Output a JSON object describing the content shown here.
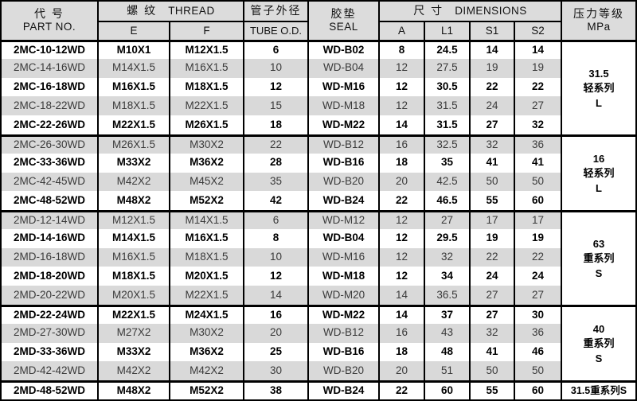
{
  "header": {
    "part_zh": "代  号",
    "part_en": "PART NO.",
    "thread_zh": "螺 纹",
    "thread_en": "THREAD",
    "col_e": "E",
    "col_f": "F",
    "tube_zh": "管子外径",
    "tube_en": "TUBE O.D.",
    "seal_zh": "胶垫",
    "seal_en": "SEAL",
    "dim_zh": "尺 寸",
    "dim_en": "DIMENSIONS",
    "col_a": "A",
    "col_l1": "L1",
    "col_s1": "S1",
    "col_s2": "S2",
    "pressure_zh": "压力等级",
    "pressure_en": "MPa"
  },
  "colors": {
    "stripe": "#d9d9d9",
    "header_bg": "#dcdcdc",
    "border": "#000000"
  },
  "groups": [
    {
      "pressure": [
        "31.5",
        "轻系列",
        "L"
      ],
      "rows": [
        {
          "part": "2MC-10-12WD",
          "e": "M10X1",
          "f": "M12X1.5",
          "tube": "6",
          "seal": "WD-B02",
          "a": "8",
          "l1": "24.5",
          "s1": "14",
          "s2": "14",
          "bold": true
        },
        {
          "part": "2MC-14-16WD",
          "e": "M14X1.5",
          "f": "M16X1.5",
          "tube": "10",
          "seal": "WD-B04",
          "a": "12",
          "l1": "27.5",
          "s1": "19",
          "s2": "19",
          "bold": false
        },
        {
          "part": "2MC-16-18WD",
          "e": "M16X1.5",
          "f": "M18X1.5",
          "tube": "12",
          "seal": "WD-M16",
          "a": "12",
          "l1": "30.5",
          "s1": "22",
          "s2": "22",
          "bold": true
        },
        {
          "part": "2MC-18-22WD",
          "e": "M18X1.5",
          "f": "M22X1.5",
          "tube": "15",
          "seal": "WD-M18",
          "a": "12",
          "l1": "31.5",
          "s1": "24",
          "s2": "27",
          "bold": false
        },
        {
          "part": "2MC-22-26WD",
          "e": "M22X1.5",
          "f": "M26X1.5",
          "tube": "18",
          "seal": "WD-M22",
          "a": "14",
          "l1": "31.5",
          "s1": "27",
          "s2": "32",
          "bold": true
        }
      ]
    },
    {
      "pressure": [
        "16",
        "轻系列",
        "L"
      ],
      "rows": [
        {
          "part": "2MC-26-30WD",
          "e": "M26X1.5",
          "f": "M30X2",
          "tube": "22",
          "seal": "WD-B12",
          "a": "16",
          "l1": "32.5",
          "s1": "32",
          "s2": "36",
          "bold": false
        },
        {
          "part": "2MC-33-36WD",
          "e": "M33X2",
          "f": "M36X2",
          "tube": "28",
          "seal": "WD-B16",
          "a": "18",
          "l1": "35",
          "s1": "41",
          "s2": "41",
          "bold": true
        },
        {
          "part": "2MC-42-45WD",
          "e": "M42X2",
          "f": "M45X2",
          "tube": "35",
          "seal": "WD-B20",
          "a": "20",
          "l1": "42.5",
          "s1": "50",
          "s2": "50",
          "bold": false
        },
        {
          "part": "2MC-48-52WD",
          "e": "M48X2",
          "f": "M52X2",
          "tube": "42",
          "seal": "WD-B24",
          "a": "22",
          "l1": "46.5",
          "s1": "55",
          "s2": "60",
          "bold": true
        }
      ]
    },
    {
      "pressure": [
        "63",
        "重系列",
        "S"
      ],
      "rows": [
        {
          "part": "2MD-12-14WD",
          "e": "M12X1.5",
          "f": "M14X1.5",
          "tube": "6",
          "seal": "WD-M12",
          "a": "12",
          "l1": "27",
          "s1": "17",
          "s2": "17",
          "bold": false
        },
        {
          "part": "2MD-14-16WD",
          "e": "M14X1.5",
          "f": "M16X1.5",
          "tube": "8",
          "seal": "WD-B04",
          "a": "12",
          "l1": "29.5",
          "s1": "19",
          "s2": "19",
          "bold": true
        },
        {
          "part": "2MD-16-18WD",
          "e": "M16X1.5",
          "f": "M18X1.5",
          "tube": "10",
          "seal": "WD-M16",
          "a": "12",
          "l1": "32",
          "s1": "22",
          "s2": "22",
          "bold": false
        },
        {
          "part": "2MD-18-20WD",
          "e": "M18X1.5",
          "f": "M20X1.5",
          "tube": "12",
          "seal": "WD-M18",
          "a": "12",
          "l1": "34",
          "s1": "24",
          "s2": "24",
          "bold": true
        },
        {
          "part": "2MD-20-22WD",
          "e": "M20X1.5",
          "f": "M22X1.5",
          "tube": "14",
          "seal": "WD-M20",
          "a": "14",
          "l1": "36.5",
          "s1": "27",
          "s2": "27",
          "bold": false
        }
      ]
    },
    {
      "pressure": [
        "40",
        "重系列",
        "S"
      ],
      "rows": [
        {
          "part": "2MD-22-24WD",
          "e": "M22X1.5",
          "f": "M24X1.5",
          "tube": "16",
          "seal": "WD-M22",
          "a": "14",
          "l1": "37",
          "s1": "27",
          "s2": "30",
          "bold": true
        },
        {
          "part": "2MD-27-30WD",
          "e": "M27X2",
          "f": "M30X2",
          "tube": "20",
          "seal": "WD-B12",
          "a": "16",
          "l1": "43",
          "s1": "32",
          "s2": "36",
          "bold": false
        },
        {
          "part": "2MD-33-36WD",
          "e": "M33X2",
          "f": "M36X2",
          "tube": "25",
          "seal": "WD-B16",
          "a": "18",
          "l1": "48",
          "s1": "41",
          "s2": "46",
          "bold": true
        },
        {
          "part": "2MD-42-42WD",
          "e": "M42X2",
          "f": "M42X2",
          "tube": "30",
          "seal": "WD-B20",
          "a": "20",
          "l1": "51",
          "s1": "50",
          "s2": "50",
          "bold": false
        }
      ]
    },
    {
      "pressure": [
        "31.5重系列S"
      ],
      "rows": [
        {
          "part": "2MD-48-52WD",
          "e": "M48X2",
          "f": "M52X2",
          "tube": "38",
          "seal": "WD-B24",
          "a": "22",
          "l1": "60",
          "s1": "55",
          "s2": "60",
          "bold": true
        }
      ]
    }
  ]
}
